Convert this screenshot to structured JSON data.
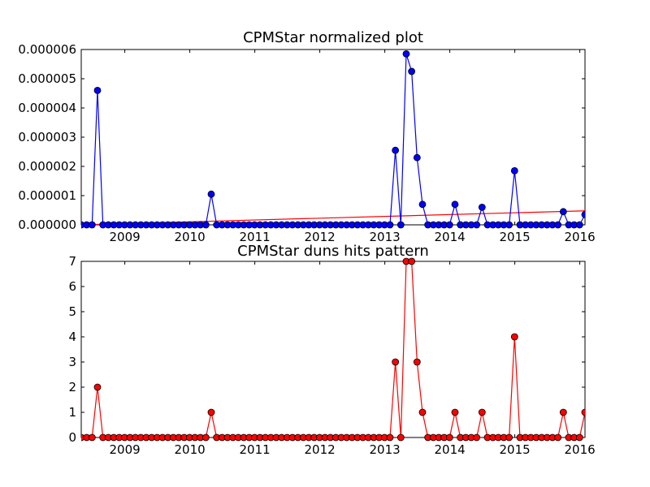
{
  "chart_data": [
    {
      "type": "line",
      "title": "CPMStar normalized plot",
      "xlabel": "",
      "ylabel": "",
      "xlim": [
        2008.33,
        2016.08
      ],
      "ylim": [
        0,
        6e-06
      ],
      "x_ticks": [
        2009,
        2010,
        2011,
        2012,
        2013,
        2014,
        2015,
        2016
      ],
      "x_tick_labels": [
        "2009",
        "2010",
        "2011",
        "2012",
        "2013",
        "2014",
        "2015",
        "2016"
      ],
      "y_ticks": [
        0,
        1e-06,
        2e-06,
        3e-06,
        4e-06,
        5e-06,
        6e-06
      ],
      "y_tick_labels": [
        "0.000000",
        "0.000001",
        "0.000002",
        "0.000003",
        "0.000004",
        "0.000005",
        "0.000006"
      ],
      "grid": false,
      "colors": {
        "series": "#0000ff",
        "trend": "#ff0000"
      },
      "series": [
        {
          "start": 2008.33,
          "step": 0.08333,
          "values": [
            0,
            0,
            0,
            4.6e-06,
            0,
            0,
            0,
            0,
            0,
            0,
            0,
            0,
            0,
            0,
            0,
            0,
            0,
            0,
            0,
            0,
            0,
            0,
            0,
            0,
            1.05e-06,
            0,
            0,
            0,
            0,
            0,
            0,
            0,
            0,
            0,
            0,
            0,
            0,
            0,
            0,
            0,
            0,
            0,
            0,
            0,
            0,
            0,
            0,
            0,
            0,
            0,
            0,
            0,
            0,
            0,
            0,
            0,
            0,
            0,
            2.55e-06,
            0,
            5.85e-06,
            5.25e-06,
            2.3e-06,
            7e-07,
            0,
            0,
            0,
            0,
            0,
            7e-07,
            0,
            0,
            0,
            0,
            6e-07,
            0,
            0,
            0,
            0,
            0,
            1.85e-06,
            0,
            0,
            0,
            0,
            0,
            0,
            0,
            0,
            4.5e-07,
            0,
            0,
            0,
            3.5e-07
          ]
        }
      ],
      "trend_line": {
        "x": [
          2008.33,
          2016.08
        ],
        "y": [
          0,
          4.8e-07
        ]
      }
    },
    {
      "type": "line",
      "title": "CPMStar duns hits pattern",
      "xlabel": "",
      "ylabel": "",
      "xlim": [
        2008.33,
        2016.08
      ],
      "ylim": [
        0,
        7
      ],
      "x_ticks": [
        2009,
        2010,
        2011,
        2012,
        2013,
        2014,
        2015,
        2016
      ],
      "x_tick_labels": [
        "2009",
        "2010",
        "2011",
        "2012",
        "2013",
        "2014",
        "2015",
        "2016"
      ],
      "y_ticks": [
        0,
        1,
        2,
        3,
        4,
        5,
        6,
        7
      ],
      "y_tick_labels": [
        "0",
        "1",
        "2",
        "3",
        "4",
        "5",
        "6",
        "7"
      ],
      "grid": false,
      "colors": {
        "series": "#ff0000"
      },
      "series": [
        {
          "start": 2008.33,
          "step": 0.08333,
          "values": [
            0,
            0,
            0,
            2,
            0,
            0,
            0,
            0,
            0,
            0,
            0,
            0,
            0,
            0,
            0,
            0,
            0,
            0,
            0,
            0,
            0,
            0,
            0,
            0,
            1,
            0,
            0,
            0,
            0,
            0,
            0,
            0,
            0,
            0,
            0,
            0,
            0,
            0,
            0,
            0,
            0,
            0,
            0,
            0,
            0,
            0,
            0,
            0,
            0,
            0,
            0,
            0,
            0,
            0,
            0,
            0,
            0,
            0,
            3,
            0,
            7,
            7,
            3,
            1,
            0,
            0,
            0,
            0,
            0,
            1,
            0,
            0,
            0,
            0,
            1,
            0,
            0,
            0,
            0,
            0,
            4,
            0,
            0,
            0,
            0,
            0,
            0,
            0,
            0,
            1,
            0,
            0,
            0,
            1
          ]
        }
      ]
    }
  ]
}
